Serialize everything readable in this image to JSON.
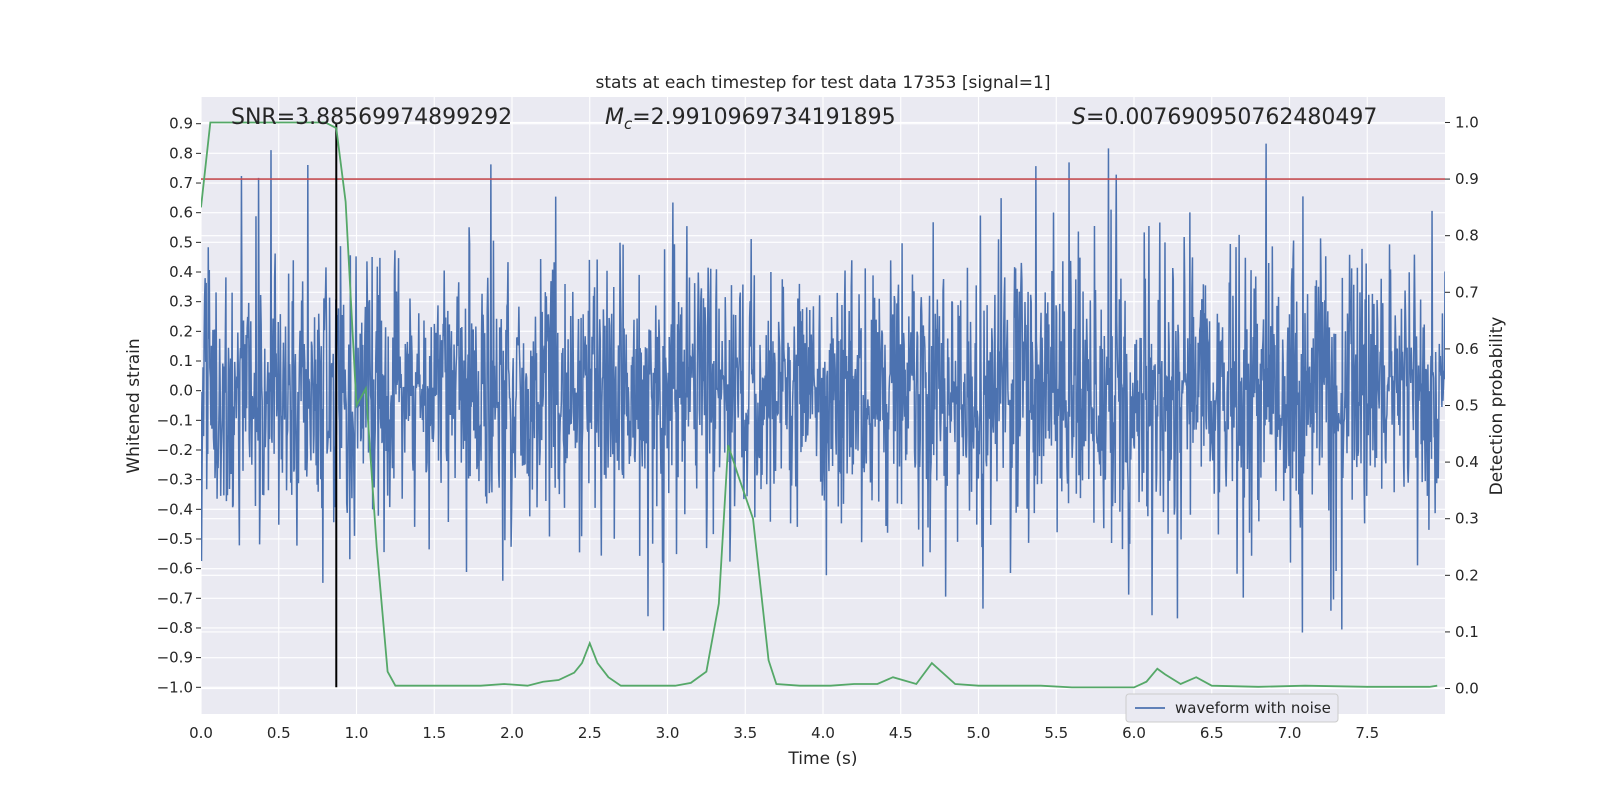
{
  "chart_data": {
    "type": "line",
    "title": "stats at each timestep for test data 17353 [signal=1]",
    "xlabel": "Time (s)",
    "ylabel_left": "Whitened strain",
    "ylabel_right": "Detection probability",
    "xlim": [
      0.0,
      8.0
    ],
    "ylim_left": [
      -1.09,
      0.99
    ],
    "ylim_right": [
      -0.045,
      1.045
    ],
    "x_ticks": [
      "0.0",
      "0.5",
      "1.0",
      "1.5",
      "2.0",
      "2.5",
      "3.0",
      "3.5",
      "4.0",
      "4.5",
      "5.0",
      "5.5",
      "6.0",
      "6.5",
      "7.0",
      "7.5"
    ],
    "x_tick_values": [
      0.0,
      0.5,
      1.0,
      1.5,
      2.0,
      2.5,
      3.0,
      3.5,
      4.0,
      4.5,
      5.0,
      5.5,
      6.0,
      6.5,
      7.0,
      7.5
    ],
    "y_left_ticks": [
      "0.9",
      "0.8",
      "0.7",
      "0.6",
      "0.5",
      "0.4",
      "0.3",
      "0.2",
      "0.1",
      "0.0",
      "−0.1",
      "−0.2",
      "−0.3",
      "−0.4",
      "−0.5",
      "−0.6",
      "−0.7",
      "−0.8",
      "−0.9",
      "−1.0"
    ],
    "y_left_tick_values": [
      0.9,
      0.8,
      0.7,
      0.6,
      0.5,
      0.4,
      0.3,
      0.2,
      0.1,
      0.0,
      -0.1,
      -0.2,
      -0.3,
      -0.4,
      -0.5,
      -0.6,
      -0.7,
      -0.8,
      -0.9,
      -1.0
    ],
    "y_right_ticks": [
      "1.0",
      "0.9",
      "0.8",
      "0.7",
      "0.6",
      "0.5",
      "0.4",
      "0.3",
      "0.2",
      "0.1",
      "0.0"
    ],
    "y_right_tick_values": [
      1.0,
      0.9,
      0.8,
      0.7,
      0.6,
      0.5,
      0.4,
      0.3,
      0.2,
      0.1,
      0.0
    ],
    "threshold": 0.9,
    "marker_time": 0.87,
    "marker_range_left": [
      -1.0,
      0.9
    ],
    "annotations": {
      "snr": "SNR=3.88569974899292",
      "mc_symbol": "M",
      "mc_sub": "c",
      "mc_value": "=2.9910969734191895",
      "s_symbol": "S",
      "s_value": "=0.007690950762480497"
    },
    "legend": [
      "waveform with noise"
    ],
    "waveform": {
      "name": "waveform with noise",
      "typical_amplitude": 0.38,
      "peak_amplitude": 0.9,
      "seed": 17353
    },
    "probability": {
      "name": "Detection probability",
      "t": [
        0.0,
        0.06,
        0.1,
        0.2,
        0.4,
        0.6,
        0.8,
        0.87,
        0.93,
        1.0,
        1.06,
        1.13,
        1.2,
        1.25,
        1.33,
        1.45,
        1.6,
        1.8,
        1.95,
        2.1,
        2.2,
        2.3,
        2.4,
        2.45,
        2.5,
        2.55,
        2.62,
        2.7,
        2.85,
        3.05,
        3.15,
        3.25,
        3.33,
        3.39,
        3.45,
        3.55,
        3.65,
        3.7,
        3.85,
        4.05,
        4.2,
        4.35,
        4.45,
        4.6,
        4.7,
        4.85,
        5.0,
        5.2,
        5.4,
        5.6,
        5.8,
        6.0,
        6.08,
        6.15,
        6.2,
        6.3,
        6.4,
        6.5,
        6.8,
        7.1,
        7.5,
        7.9,
        7.95
      ],
      "p": [
        0.85,
        1.0,
        1.0,
        1.0,
        1.0,
        1.0,
        1.0,
        0.99,
        0.86,
        0.5,
        0.53,
        0.25,
        0.03,
        0.005,
        0.005,
        0.005,
        0.005,
        0.005,
        0.008,
        0.005,
        0.012,
        0.015,
        0.028,
        0.045,
        0.08,
        0.045,
        0.02,
        0.005,
        0.005,
        0.005,
        0.01,
        0.03,
        0.15,
        0.43,
        0.38,
        0.3,
        0.05,
        0.008,
        0.005,
        0.005,
        0.008,
        0.008,
        0.02,
        0.008,
        0.045,
        0.008,
        0.005,
        0.005,
        0.005,
        0.002,
        0.002,
        0.002,
        0.012,
        0.035,
        0.025,
        0.008,
        0.02,
        0.005,
        0.003,
        0.005,
        0.003,
        0.003,
        0.005
      ]
    }
  },
  "colors": {
    "plot_bg": "#eaeaf2",
    "grid": "#ffffff",
    "waveform": "#4c72b0",
    "probability": "#55a868",
    "threshold": "#c44e52",
    "marker": "#000000"
  }
}
